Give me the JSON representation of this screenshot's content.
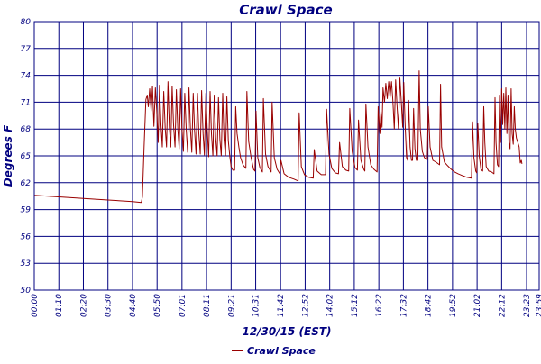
{
  "chart_data": {
    "type": "line",
    "title": "Crawl Space",
    "xlabel": "12/30/15 (EST)",
    "ylabel": "Degrees F",
    "ylim": [
      50,
      80
    ],
    "y_ticks": [
      50,
      53,
      56,
      59,
      62,
      65,
      68,
      71,
      74,
      77,
      80
    ],
    "x_unit": "minutes since 00:00",
    "xlim": [
      0,
      1439
    ],
    "x_ticks": [
      {
        "label": "00:00",
        "min": 0
      },
      {
        "label": "01:10",
        "min": 70
      },
      {
        "label": "02:20",
        "min": 140
      },
      {
        "label": "03:30",
        "min": 210
      },
      {
        "label": "04:40",
        "min": 280
      },
      {
        "label": "05:50",
        "min": 350
      },
      {
        "label": "07:01",
        "min": 421
      },
      {
        "label": "08:11",
        "min": 491
      },
      {
        "label": "09:21",
        "min": 561
      },
      {
        "label": "10:31",
        "min": 631
      },
      {
        "label": "11:42",
        "min": 702
      },
      {
        "label": "12:52",
        "min": 772
      },
      {
        "label": "14:02",
        "min": 842
      },
      {
        "label": "15:12",
        "min": 912
      },
      {
        "label": "16:22",
        "min": 982
      },
      {
        "label": "17:32",
        "min": 1052
      },
      {
        "label": "18:42",
        "min": 1122
      },
      {
        "label": "19:52",
        "min": 1192
      },
      {
        "label": "21:02",
        "min": 1262
      },
      {
        "label": "22:12",
        "min": 1332
      },
      {
        "label": "23:23",
        "min": 1403
      },
      {
        "label": "23:59",
        "min": 1439
      }
    ],
    "grid": true,
    "legend_position": "bottom-left",
    "series": [
      {
        "name": "Crawl Space",
        "color": "#990000",
        "points": [
          [
            0,
            60.6
          ],
          [
            40,
            60.5
          ],
          [
            80,
            60.4
          ],
          [
            120,
            60.3
          ],
          [
            160,
            60.2
          ],
          [
            200,
            60.1
          ],
          [
            240,
            60.0
          ],
          [
            280,
            59.9
          ],
          [
            305,
            59.8
          ],
          [
            308,
            60.4
          ],
          [
            313,
            66.0
          ],
          [
            318,
            71.3
          ],
          [
            322,
            71.8
          ],
          [
            325,
            70.5
          ],
          [
            329,
            72.5
          ],
          [
            333,
            70.0
          ],
          [
            337,
            72.8
          ],
          [
            341,
            68.3
          ],
          [
            345,
            72.6
          ],
          [
            349,
            70.1
          ],
          [
            353,
            66.5
          ],
          [
            357,
            72.9
          ],
          [
            361,
            68.5
          ],
          [
            365,
            66.0
          ],
          [
            369,
            72.2
          ],
          [
            373,
            68.1
          ],
          [
            377,
            66.0
          ],
          [
            381,
            73.3
          ],
          [
            385,
            68.2
          ],
          [
            389,
            66.0
          ],
          [
            393,
            72.8
          ],
          [
            397,
            68.4
          ],
          [
            401,
            66.0
          ],
          [
            405,
            72.4
          ],
          [
            409,
            68.0
          ],
          [
            413,
            65.8
          ],
          [
            417,
            72.5
          ],
          [
            421,
            68.0
          ],
          [
            425,
            65.5
          ],
          [
            429,
            72.0
          ],
          [
            433,
            68.0
          ],
          [
            437,
            65.4
          ],
          [
            441,
            72.6
          ],
          [
            445,
            68.0
          ],
          [
            449,
            65.4
          ],
          [
            453,
            72.0
          ],
          [
            457,
            67.8
          ],
          [
            461,
            65.2
          ],
          [
            465,
            72.0
          ],
          [
            469,
            67.5
          ],
          [
            473,
            65.2
          ],
          [
            477,
            72.3
          ],
          [
            481,
            67.5
          ],
          [
            485,
            65.1
          ],
          [
            489,
            72.0
          ],
          [
            493,
            67.8
          ],
          [
            497,
            64.9
          ],
          [
            501,
            72.2
          ],
          [
            505,
            67.5
          ],
          [
            509,
            65.0
          ],
          [
            513,
            71.8
          ],
          [
            517,
            67.0
          ],
          [
            521,
            65.0
          ],
          [
            525,
            71.5
          ],
          [
            529,
            66.8
          ],
          [
            533,
            65.0
          ],
          [
            537,
            72.0
          ],
          [
            541,
            66.8
          ],
          [
            545,
            65.0
          ],
          [
            549,
            71.6
          ],
          [
            553,
            66.7
          ],
          [
            557,
            65.0
          ],
          [
            561,
            63.8
          ],
          [
            566,
            63.4
          ],
          [
            571,
            63.4
          ],
          [
            574,
            70.5
          ],
          [
            578,
            67.5
          ],
          [
            583,
            66.0
          ],
          [
            588,
            64.8
          ],
          [
            595,
            64.0
          ],
          [
            603,
            63.6
          ],
          [
            606,
            72.2
          ],
          [
            611,
            66.6
          ],
          [
            618,
            64.8
          ],
          [
            625,
            63.5
          ],
          [
            629,
            63.3
          ],
          [
            632,
            70.0
          ],
          [
            637,
            64.8
          ],
          [
            643,
            63.7
          ],
          [
            650,
            63.2
          ],
          [
            653,
            71.4
          ],
          [
            659,
            65.2
          ],
          [
            666,
            63.8
          ],
          [
            675,
            63.2
          ],
          [
            678,
            71.0
          ],
          [
            684,
            64.8
          ],
          [
            692,
            63.5
          ],
          [
            700,
            63.0
          ],
          [
            703,
            64.5
          ],
          [
            712,
            63.0
          ],
          [
            725,
            62.6
          ],
          [
            740,
            62.4
          ],
          [
            752,
            62.2
          ],
          [
            755,
            69.8
          ],
          [
            761,
            63.8
          ],
          [
            770,
            62.9
          ],
          [
            782,
            62.6
          ],
          [
            795,
            62.5
          ],
          [
            798,
            65.7
          ],
          [
            806,
            63.3
          ],
          [
            818,
            62.9
          ],
          [
            830,
            62.9
          ],
          [
            833,
            70.2
          ],
          [
            840,
            65.2
          ],
          [
            848,
            63.6
          ],
          [
            858,
            63.1
          ],
          [
            867,
            63.0
          ],
          [
            870,
            66.5
          ],
          [
            878,
            63.8
          ],
          [
            888,
            63.4
          ],
          [
            896,
            63.3
          ],
          [
            899,
            70.3
          ],
          [
            906,
            65.5
          ],
          [
            914,
            63.7
          ],
          [
            921,
            63.4
          ],
          [
            924,
            69.0
          ],
          [
            931,
            64.5
          ],
          [
            939,
            63.5
          ],
          [
            942,
            63.3
          ],
          [
            945,
            70.8
          ],
          [
            951,
            66.0
          ],
          [
            959,
            64.0
          ],
          [
            968,
            63.5
          ],
          [
            977,
            63.2
          ],
          [
            980,
            70.5
          ],
          [
            985,
            67.5
          ],
          [
            988,
            70.0
          ],
          [
            991,
            68.2
          ],
          [
            994,
            72.6
          ],
          [
            998,
            71.0
          ],
          [
            1002,
            73.1
          ],
          [
            1006,
            71.4
          ],
          [
            1010,
            73.3
          ],
          [
            1014,
            71.5
          ],
          [
            1018,
            73.3
          ],
          [
            1022,
            71.2
          ],
          [
            1026,
            68.0
          ],
          [
            1030,
            73.5
          ],
          [
            1034,
            70.5
          ],
          [
            1038,
            68.0
          ],
          [
            1042,
            73.7
          ],
          [
            1046,
            71.0
          ],
          [
            1050,
            68.2
          ],
          [
            1053,
            73.2
          ],
          [
            1057,
            68.5
          ],
          [
            1061,
            64.8
          ],
          [
            1064,
            64.5
          ],
          [
            1067,
            71.2
          ],
          [
            1071,
            66.0
          ],
          [
            1075,
            64.5
          ],
          [
            1078,
            64.5
          ],
          [
            1081,
            70.3
          ],
          [
            1085,
            65.8
          ],
          [
            1089,
            64.5
          ],
          [
            1093,
            64.5
          ],
          [
            1097,
            74.5
          ],
          [
            1100,
            68.0
          ],
          [
            1106,
            65.5
          ],
          [
            1112,
            64.8
          ],
          [
            1120,
            64.6
          ],
          [
            1123,
            70.5
          ],
          [
            1128,
            66.0
          ],
          [
            1136,
            64.5
          ],
          [
            1145,
            64.3
          ],
          [
            1155,
            64.0
          ],
          [
            1158,
            73.0
          ],
          [
            1161,
            66.0
          ],
          [
            1169,
            64.3
          ],
          [
            1178,
            63.9
          ],
          [
            1188,
            63.5
          ],
          [
            1198,
            63.2
          ],
          [
            1208,
            63.0
          ],
          [
            1220,
            62.8
          ],
          [
            1233,
            62.6
          ],
          [
            1246,
            62.5
          ],
          [
            1249,
            68.8
          ],
          [
            1253,
            64.8
          ],
          [
            1258,
            63.3
          ],
          [
            1261,
            63.1
          ],
          [
            1264,
            68.6
          ],
          [
            1268,
            65.0
          ],
          [
            1273,
            63.5
          ],
          [
            1278,
            63.3
          ],
          [
            1281,
            70.5
          ],
          [
            1284,
            66.5
          ],
          [
            1288,
            63.8
          ],
          [
            1295,
            63.3
          ],
          [
            1303,
            63.2
          ],
          [
            1310,
            63.0
          ],
          [
            1313,
            71.5
          ],
          [
            1316,
            66.5
          ],
          [
            1320,
            64.0
          ],
          [
            1323,
            63.8
          ],
          [
            1326,
            71.8
          ],
          [
            1329,
            66.5
          ],
          [
            1332,
            72.5
          ],
          [
            1335,
            68.5
          ],
          [
            1338,
            72.0
          ],
          [
            1341,
            68.0
          ],
          [
            1344,
            72.6
          ],
          [
            1347,
            67.5
          ],
          [
            1350,
            71.8
          ],
          [
            1353,
            66.5
          ],
          [
            1356,
            65.8
          ],
          [
            1359,
            72.5
          ],
          [
            1362,
            67.5
          ],
          [
            1365,
            66.3
          ],
          [
            1368,
            70.5
          ],
          [
            1371,
            68.0
          ],
          [
            1374,
            67.0
          ],
          [
            1378,
            66.5
          ],
          [
            1382,
            66.0
          ],
          [
            1385,
            64.2
          ],
          [
            1388,
            64.5
          ],
          [
            1390,
            64.1
          ]
        ]
      }
    ]
  }
}
